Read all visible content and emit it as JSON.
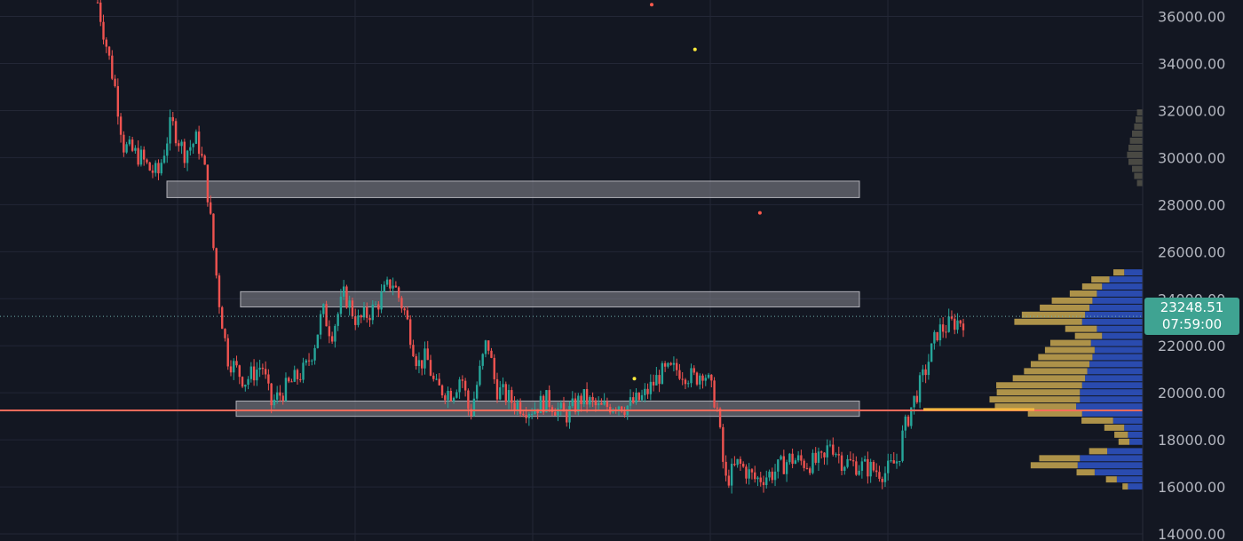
{
  "colors": {
    "background": "#131722",
    "grid": "#232736",
    "up": "#26a69a",
    "down": "#ef5350",
    "zone_fill": "#8c8c94",
    "profile_up": "#c9a850",
    "profile_down": "#2f55c8",
    "price_tag": "#3fa392",
    "axis_text": "#b2b5be",
    "support_line": "#ff6b5b"
  },
  "price_tag": {
    "price": "23248.51",
    "countdown": "07:59:00"
  },
  "chart_data": {
    "type": "candlestick",
    "ylim": [
      13700,
      36700
    ],
    "y_ticks": [
      "14000.00",
      "16000.00",
      "18000.00",
      "20000.00",
      "22000.00",
      "24000.00",
      "26000.00",
      "28000.00",
      "30000.00",
      "32000.00",
      "34000.00",
      "36000.00"
    ],
    "last_price": 23248.51,
    "support_line": 19250,
    "zones": [
      {
        "low": 28300,
        "high": 29000,
        "x_start": 0.08,
        "x_end": 0.88
      },
      {
        "low": 23650,
        "high": 24300,
        "x_start": 0.165,
        "x_end": 0.88
      },
      {
        "low": 19000,
        "high": 19650,
        "x_start": 0.16,
        "x_end": 0.88
      }
    ],
    "price_path": [
      [
        0.0,
        36600
      ],
      [
        0.02,
        33000
      ],
      [
        0.03,
        30500
      ],
      [
        0.05,
        30000
      ],
      [
        0.06,
        29500
      ],
      [
        0.07,
        29300
      ],
      [
        0.085,
        31500
      ],
      [
        0.1,
        30200
      ],
      [
        0.115,
        30800
      ],
      [
        0.125,
        29200
      ],
      [
        0.14,
        24000
      ],
      [
        0.15,
        21500
      ],
      [
        0.17,
        20500
      ],
      [
        0.19,
        21200
      ],
      [
        0.2,
        19500
      ],
      [
        0.22,
        20300
      ],
      [
        0.24,
        21000
      ],
      [
        0.25,
        22000
      ],
      [
        0.26,
        23500
      ],
      [
        0.27,
        22500
      ],
      [
        0.285,
        24200
      ],
      [
        0.3,
        23000
      ],
      [
        0.32,
        23600
      ],
      [
        0.34,
        24800
      ],
      [
        0.355,
        23400
      ],
      [
        0.37,
        21200
      ],
      [
        0.38,
        21500
      ],
      [
        0.39,
        20200
      ],
      [
        0.41,
        20000
      ],
      [
        0.42,
        20800
      ],
      [
        0.43,
        19000
      ],
      [
        0.45,
        22300
      ],
      [
        0.46,
        20200
      ],
      [
        0.48,
        19600
      ],
      [
        0.5,
        19300
      ],
      [
        0.52,
        19700
      ],
      [
        0.54,
        19000
      ],
      [
        0.56,
        19800
      ],
      [
        0.58,
        19300
      ],
      [
        0.6,
        19600
      ],
      [
        0.61,
        19400
      ],
      [
        0.63,
        19800
      ],
      [
        0.65,
        20800
      ],
      [
        0.67,
        21000
      ],
      [
        0.69,
        20600
      ],
      [
        0.7,
        21000
      ],
      [
        0.715,
        19500
      ],
      [
        0.725,
        16200
      ],
      [
        0.74,
        17000
      ],
      [
        0.76,
        16300
      ],
      [
        0.78,
        16600
      ],
      [
        0.8,
        17200
      ],
      [
        0.82,
        17000
      ],
      [
        0.84,
        17100
      ],
      [
        0.845,
        18000
      ],
      [
        0.86,
        17100
      ],
      [
        0.88,
        16900
      ],
      [
        0.91,
        16600
      ],
      [
        0.925,
        17200
      ],
      [
        0.93,
        18200
      ],
      [
        0.94,
        19400
      ],
      [
        0.955,
        20800
      ],
      [
        0.97,
        22600
      ],
      [
        0.99,
        23000
      ],
      [
        1.0,
        23100
      ]
    ],
    "volume_profile": [
      {
        "price": 25100,
        "up": 0.12,
        "down": 0.25
      },
      {
        "price": 24800,
        "up": 0.2,
        "down": 0.45
      },
      {
        "price": 24500,
        "up": 0.22,
        "down": 0.55
      },
      {
        "price": 24200,
        "up": 0.3,
        "down": 0.62
      },
      {
        "price": 23900,
        "up": 0.45,
        "down": 0.68
      },
      {
        "price": 23600,
        "up": 0.55,
        "down": 0.72
      },
      {
        "price": 23300,
        "up": 0.7,
        "down": 0.78
      },
      {
        "price": 23000,
        "up": 0.75,
        "down": 0.82
      },
      {
        "price": 22700,
        "up": 0.35,
        "down": 0.62
      },
      {
        "price": 22400,
        "up": 0.3,
        "down": 0.55
      },
      {
        "price": 22100,
        "up": 0.45,
        "down": 0.7
      },
      {
        "price": 21800,
        "up": 0.55,
        "down": 0.65
      },
      {
        "price": 21500,
        "up": 0.6,
        "down": 0.68
      },
      {
        "price": 21200,
        "up": 0.65,
        "down": 0.72
      },
      {
        "price": 20900,
        "up": 0.7,
        "down": 0.75
      },
      {
        "price": 20600,
        "up": 0.8,
        "down": 0.78
      },
      {
        "price": 20300,
        "up": 0.95,
        "down": 0.82
      },
      {
        "price": 20000,
        "up": 0.92,
        "down": 0.85
      },
      {
        "price": 19700,
        "up": 1.0,
        "down": 0.85
      },
      {
        "price": 19400,
        "up": 0.9,
        "down": 0.9
      },
      {
        "price": 19100,
        "up": 0.6,
        "down": 0.82
      },
      {
        "price": 18800,
        "up": 0.35,
        "down": 0.4
      },
      {
        "price": 18500,
        "up": 0.22,
        "down": 0.25
      },
      {
        "price": 18200,
        "up": 0.15,
        "down": 0.2
      },
      {
        "price": 17900,
        "up": 0.12,
        "down": 0.18
      },
      {
        "price": 17500,
        "up": 0.2,
        "down": 0.48
      },
      {
        "price": 17200,
        "up": 0.45,
        "down": 0.85
      },
      {
        "price": 16900,
        "up": 0.52,
        "down": 0.88
      },
      {
        "price": 16600,
        "up": 0.2,
        "down": 0.65
      },
      {
        "price": 16300,
        "up": 0.12,
        "down": 0.35
      },
      {
        "price": 16000,
        "up": 0.06,
        "down": 0.2
      }
    ],
    "vp_upper": [
      {
        "price": 31900,
        "down": 0.08
      },
      {
        "price": 31600,
        "down": 0.1
      },
      {
        "price": 31300,
        "down": 0.12
      },
      {
        "price": 31000,
        "down": 0.15
      },
      {
        "price": 30700,
        "down": 0.18
      },
      {
        "price": 30400,
        "down": 0.2
      },
      {
        "price": 30100,
        "down": 0.22
      },
      {
        "price": 29800,
        "down": 0.2
      },
      {
        "price": 29500,
        "down": 0.15
      },
      {
        "price": 29200,
        "down": 0.12
      },
      {
        "price": 28900,
        "down": 0.08
      }
    ],
    "markers": [
      {
        "x": 0.69,
        "y": 34600,
        "color": "#ffeb3b"
      },
      {
        "x": 0.64,
        "y": 36500,
        "color": "#ff5a4d"
      },
      {
        "x": 0.765,
        "y": 27650,
        "color": "#ff5a4d"
      },
      {
        "x": 0.62,
        "y": 20600,
        "color": "#ffeb3b"
      }
    ]
  }
}
